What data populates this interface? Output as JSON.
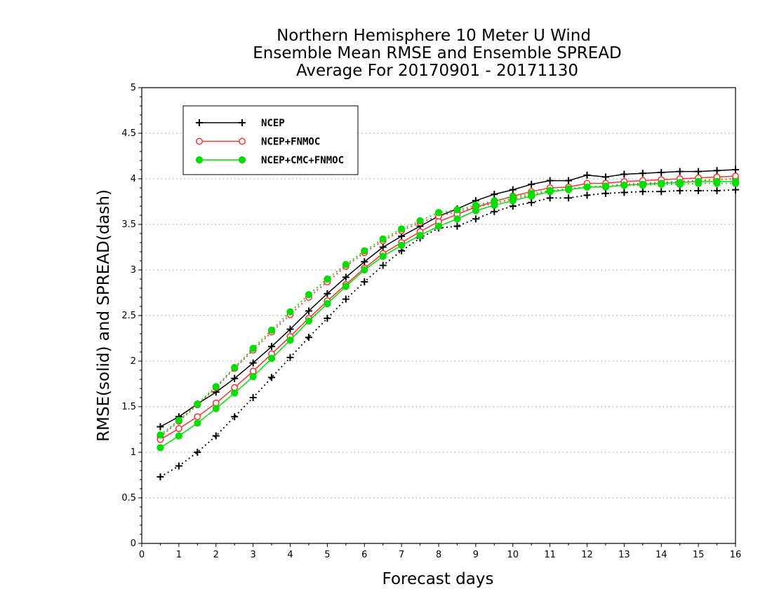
{
  "chart_data": {
    "type": "line",
    "title_lines": [
      "Northern Hemisphere 10 Meter U Wind",
      "Ensemble Mean RMSE and Ensemble SPREAD",
      "Average For 20170901 - 20171130"
    ],
    "xlabel": "Forecast days",
    "ylabel": "RMSE(solid) and SPREAD(dash)",
    "xlim": [
      0,
      16
    ],
    "ylim": [
      0,
      5
    ],
    "x_ticks": [
      "0",
      "1",
      "2",
      "3",
      "4",
      "5",
      "6",
      "7",
      "8",
      "9",
      "10",
      "11",
      "12",
      "13",
      "14",
      "15",
      "16"
    ],
    "y_ticks": [
      "0",
      "0.5",
      "1",
      "1.5",
      "2",
      "2.5",
      "3",
      "3.5",
      "4",
      "4.5",
      "5"
    ],
    "grid": true,
    "legend_position": "top-left",
    "x": [
      0.5,
      1,
      1.5,
      2,
      2.5,
      3,
      3.5,
      4,
      4.5,
      5,
      5.5,
      6,
      6.5,
      7,
      7.5,
      8,
      8.5,
      9,
      9.5,
      10,
      10.5,
      11,
      11.5,
      12,
      12.5,
      13,
      13.5,
      14,
      14.5,
      15,
      15.5,
      16
    ],
    "series": [
      {
        "name": "NCEP",
        "color": "#000000",
        "marker": "plus",
        "rmse": [
          1.28,
          1.39,
          1.53,
          1.66,
          1.81,
          1.98,
          2.16,
          2.35,
          2.55,
          2.74,
          2.92,
          3.09,
          3.25,
          3.37,
          3.48,
          3.59,
          3.67,
          3.76,
          3.83,
          3.88,
          3.94,
          3.98,
          3.98,
          4.04,
          4.02,
          4.05,
          4.06,
          4.07,
          4.08,
          4.08,
          4.09,
          4.1
        ],
        "spread": [
          0.73,
          0.85,
          1.0,
          1.18,
          1.39,
          1.6,
          1.82,
          2.04,
          2.26,
          2.47,
          2.68,
          2.87,
          3.05,
          3.21,
          3.35,
          3.46,
          3.48,
          3.56,
          3.64,
          3.7,
          3.74,
          3.79,
          3.79,
          3.82,
          3.84,
          3.85,
          3.86,
          3.86,
          3.87,
          3.87,
          3.87,
          3.88
        ]
      },
      {
        "name": "NCEP+FNMOC",
        "color": "#ff3333",
        "marker": "open-circle",
        "rmse": [
          1.14,
          1.26,
          1.39,
          1.54,
          1.71,
          1.89,
          2.08,
          2.27,
          2.47,
          2.66,
          2.84,
          3.02,
          3.18,
          3.3,
          3.42,
          3.53,
          3.61,
          3.69,
          3.75,
          3.81,
          3.86,
          3.9,
          3.91,
          3.95,
          3.95,
          3.97,
          3.98,
          3.99,
          4.0,
          4.01,
          4.02,
          4.03
        ],
        "spread": [
          1.17,
          1.34,
          1.52,
          1.71,
          1.92,
          2.12,
          2.32,
          2.51,
          2.7,
          2.87,
          3.04,
          3.19,
          3.32,
          3.43,
          3.52,
          3.59,
          3.64,
          3.69,
          3.73,
          3.78,
          3.82,
          3.86,
          3.89,
          3.91,
          3.92,
          3.94,
          3.95,
          3.96,
          3.97,
          3.98,
          3.99,
          4.0
        ]
      },
      {
        "name": "NCEP+CMC+FNMOC",
        "color": "#00dd00",
        "marker": "filled-circle",
        "rmse": [
          1.05,
          1.18,
          1.32,
          1.48,
          1.65,
          1.83,
          2.03,
          2.23,
          2.44,
          2.63,
          2.82,
          3.0,
          3.15,
          3.27,
          3.38,
          3.48,
          3.56,
          3.65,
          3.71,
          3.76,
          3.81,
          3.86,
          3.88,
          3.91,
          3.91,
          3.93,
          3.94,
          3.95,
          3.96,
          3.97,
          3.97,
          3.97
        ],
        "spread": [
          1.19,
          1.35,
          1.53,
          1.72,
          1.93,
          2.14,
          2.34,
          2.54,
          2.73,
          2.9,
          3.06,
          3.21,
          3.34,
          3.45,
          3.54,
          3.63,
          3.66,
          3.71,
          3.76,
          3.8,
          3.84,
          3.87,
          3.89,
          3.91,
          3.92,
          3.93,
          3.93,
          3.94,
          3.94,
          3.95,
          3.95,
          3.95
        ]
      }
    ]
  }
}
